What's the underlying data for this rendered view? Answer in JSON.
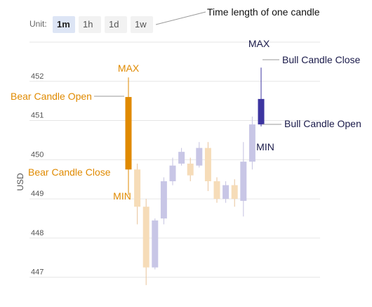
{
  "toolbar": {
    "unit_label": "Unit:",
    "buttons": [
      {
        "label": "1m",
        "active": true
      },
      {
        "label": "1h",
        "active": false
      },
      {
        "label": "1d",
        "active": false
      },
      {
        "label": "1w",
        "active": false
      }
    ]
  },
  "colors": {
    "bear_highlight": "#e08a00",
    "bull_highlight": "#3d35a0",
    "bear_faded": "#f6dcb8",
    "bull_faded": "#c8c6e6",
    "wick_bear": "#e8c39a",
    "wick_bull": "#c4c2e0",
    "annotation_line": "#999999",
    "grid": "#e6e6e6",
    "tick_text": "#555555"
  },
  "annotations": {
    "time_length": "Time length of one candle",
    "bear_max": "MAX",
    "bear_open": "Bear Candle Open",
    "bear_close": "Bear Candle Close",
    "bear_min": "MIN",
    "bull_max": "MAX",
    "bull_close": "Bull Candle Close",
    "bull_open": "Bull Candle Open",
    "bull_min": "MIN"
  },
  "chart_data": {
    "type": "candlestick",
    "ylabel": "USD",
    "yticks": [
      447,
      448,
      449,
      450,
      451,
      452
    ],
    "ylim": [
      446.85,
      453.0
    ],
    "grid": true,
    "candles": [
      {
        "open": 451.6,
        "close": 449.75,
        "high": 452.1,
        "low": 449.1,
        "highlight": true
      },
      {
        "open": 449.75,
        "close": 448.8,
        "high": 449.9,
        "low": 448.35,
        "highlight": false
      },
      {
        "open": 448.8,
        "close": 447.25,
        "high": 449.0,
        "low": 446.8,
        "highlight": false
      },
      {
        "open": 447.25,
        "close": 448.45,
        "high": 448.5,
        "low": 447.2,
        "highlight": false
      },
      {
        "open": 448.5,
        "close": 449.45,
        "high": 449.55,
        "low": 448.35,
        "highlight": false
      },
      {
        "open": 449.45,
        "close": 449.85,
        "high": 450.05,
        "low": 449.35,
        "highlight": false
      },
      {
        "open": 449.9,
        "close": 450.2,
        "high": 450.3,
        "low": 449.85,
        "highlight": false
      },
      {
        "open": 449.9,
        "close": 449.6,
        "high": 450.05,
        "low": 449.45,
        "highlight": false
      },
      {
        "open": 449.85,
        "close": 450.3,
        "high": 450.45,
        "low": 449.8,
        "highlight": false
      },
      {
        "open": 450.3,
        "close": 449.45,
        "high": 450.45,
        "low": 449.2,
        "highlight": false
      },
      {
        "open": 449.45,
        "close": 449.0,
        "high": 449.55,
        "low": 448.9,
        "highlight": false
      },
      {
        "open": 449.0,
        "close": 449.35,
        "high": 449.45,
        "low": 448.9,
        "highlight": false
      },
      {
        "open": 449.35,
        "close": 449.0,
        "high": 449.5,
        "low": 448.8,
        "highlight": false
      },
      {
        "open": 448.95,
        "close": 449.95,
        "high": 450.45,
        "low": 448.55,
        "highlight": false
      },
      {
        "open": 449.95,
        "close": 450.9,
        "high": 451.1,
        "low": 449.75,
        "highlight": false
      },
      {
        "open": 450.9,
        "close": 451.55,
        "high": 452.35,
        "low": 450.85,
        "highlight": true
      }
    ]
  }
}
